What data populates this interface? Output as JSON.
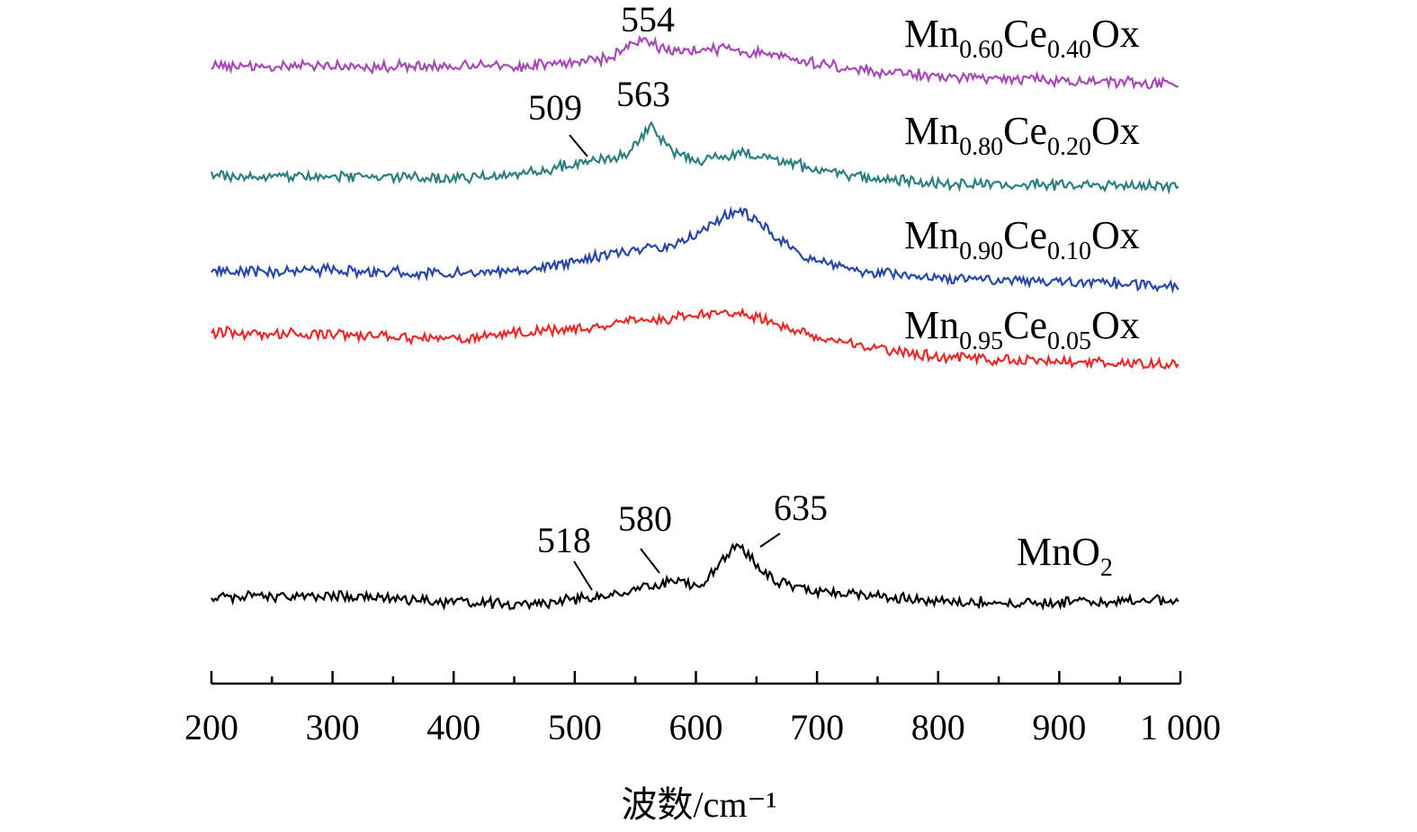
{
  "chart_data": {
    "type": "line",
    "title": "",
    "xlabel": "波数/cm⁻¹",
    "ylabel": "",
    "xlim": [
      200,
      1000
    ],
    "x_ticks": [
      "200",
      "300",
      "400",
      "500",
      "600",
      "700",
      "800",
      "900",
      "1 000"
    ],
    "x_tick_values": [
      200,
      300,
      400,
      500,
      600,
      700,
      800,
      900,
      1000
    ],
    "grid": false,
    "legend": "labels at right end of each curve",
    "y_axis_shown": false,
    "series": [
      {
        "name": "Mn0.60Ce0.40Ox",
        "label_base": "Mn",
        "label_sub1": "0.60",
        "label_mid": "Ce",
        "label_sub2": "0.40",
        "label_end": "Ox",
        "color": "#a64bb5",
        "x": [
          200,
          300,
          400,
          450,
          500,
          530,
          554,
          580,
          620,
          660,
          700,
          750,
          800,
          900,
          1000
        ],
        "y": [
          0.0,
          0.0,
          0.0,
          0.01,
          0.04,
          0.12,
          0.33,
          0.18,
          0.22,
          0.14,
          0.04,
          -0.06,
          -0.12,
          -0.17,
          -0.22
        ],
        "peaks": [
          {
            "label": "554",
            "x": 554
          }
        ]
      },
      {
        "name": "Mn0.80Ce0.20Ox",
        "label_base": "Mn",
        "label_sub1": "0.80",
        "label_mid": "Ce",
        "label_sub2": "0.20",
        "label_end": "Ox",
        "color": "#2e8080",
        "x": [
          200,
          300,
          400,
          450,
          480,
          509,
          540,
          563,
          580,
          600,
          640,
          680,
          700,
          750,
          800,
          900,
          1000
        ],
        "y": [
          0.0,
          0.0,
          -0.02,
          0.02,
          0.07,
          0.18,
          0.22,
          0.55,
          0.28,
          0.18,
          0.25,
          0.15,
          0.06,
          -0.03,
          -0.08,
          -0.09,
          -0.11
        ],
        "peaks": [
          {
            "label": "509",
            "x": 509
          },
          {
            "label": "563",
            "x": 563
          }
        ]
      },
      {
        "name": "Mn0.90Ce0.10Ox",
        "label_base": "Mn",
        "label_sub1": "0.90",
        "label_mid": "Ce",
        "label_sub2": "0.10",
        "label_end": "Ox",
        "color": "#2a48a6",
        "x": [
          200,
          300,
          400,
          450,
          500,
          550,
          580,
          610,
          635,
          660,
          690,
          730,
          800,
          900,
          1000
        ],
        "y": [
          0.0,
          0.02,
          -0.03,
          0.02,
          0.12,
          0.28,
          0.3,
          0.55,
          0.78,
          0.52,
          0.18,
          0.02,
          -0.08,
          -0.12,
          -0.17
        ],
        "peaks": []
      },
      {
        "name": "Mn0.95Ce0.05Ox",
        "label_base": "Mn",
        "label_sub1": "0.95",
        "label_mid": "Ce",
        "label_sub2": "0.05",
        "label_end": "Ox",
        "color": "#e62b2b",
        "x": [
          200,
          300,
          400,
          450,
          500,
          550,
          580,
          620,
          640,
          670,
          700,
          750,
          800,
          900,
          1000
        ],
        "y": [
          0.0,
          -0.02,
          -0.08,
          0.0,
          0.05,
          0.15,
          0.18,
          0.25,
          0.22,
          0.1,
          -0.05,
          -0.2,
          -0.3,
          -0.35,
          -0.4
        ],
        "peaks": []
      },
      {
        "name": "MnO2",
        "label_base": "MnO",
        "label_sub1": "2",
        "label_mid": "",
        "label_sub2": "",
        "label_end": "",
        "color": "#000000",
        "x": [
          200,
          300,
          400,
          450,
          500,
          518,
          550,
          580,
          605,
          620,
          635,
          650,
          670,
          700,
          800,
          900,
          1000
        ],
        "y": [
          0.0,
          0.02,
          -0.06,
          -0.08,
          -0.03,
          0.0,
          0.08,
          0.18,
          0.12,
          0.4,
          0.62,
          0.35,
          0.15,
          0.06,
          -0.05,
          -0.06,
          -0.02
        ],
        "peaks": [
          {
            "label": "518",
            "x": 518
          },
          {
            "label": "580",
            "x": 580
          },
          {
            "label": "635",
            "x": 635
          }
        ]
      }
    ]
  }
}
